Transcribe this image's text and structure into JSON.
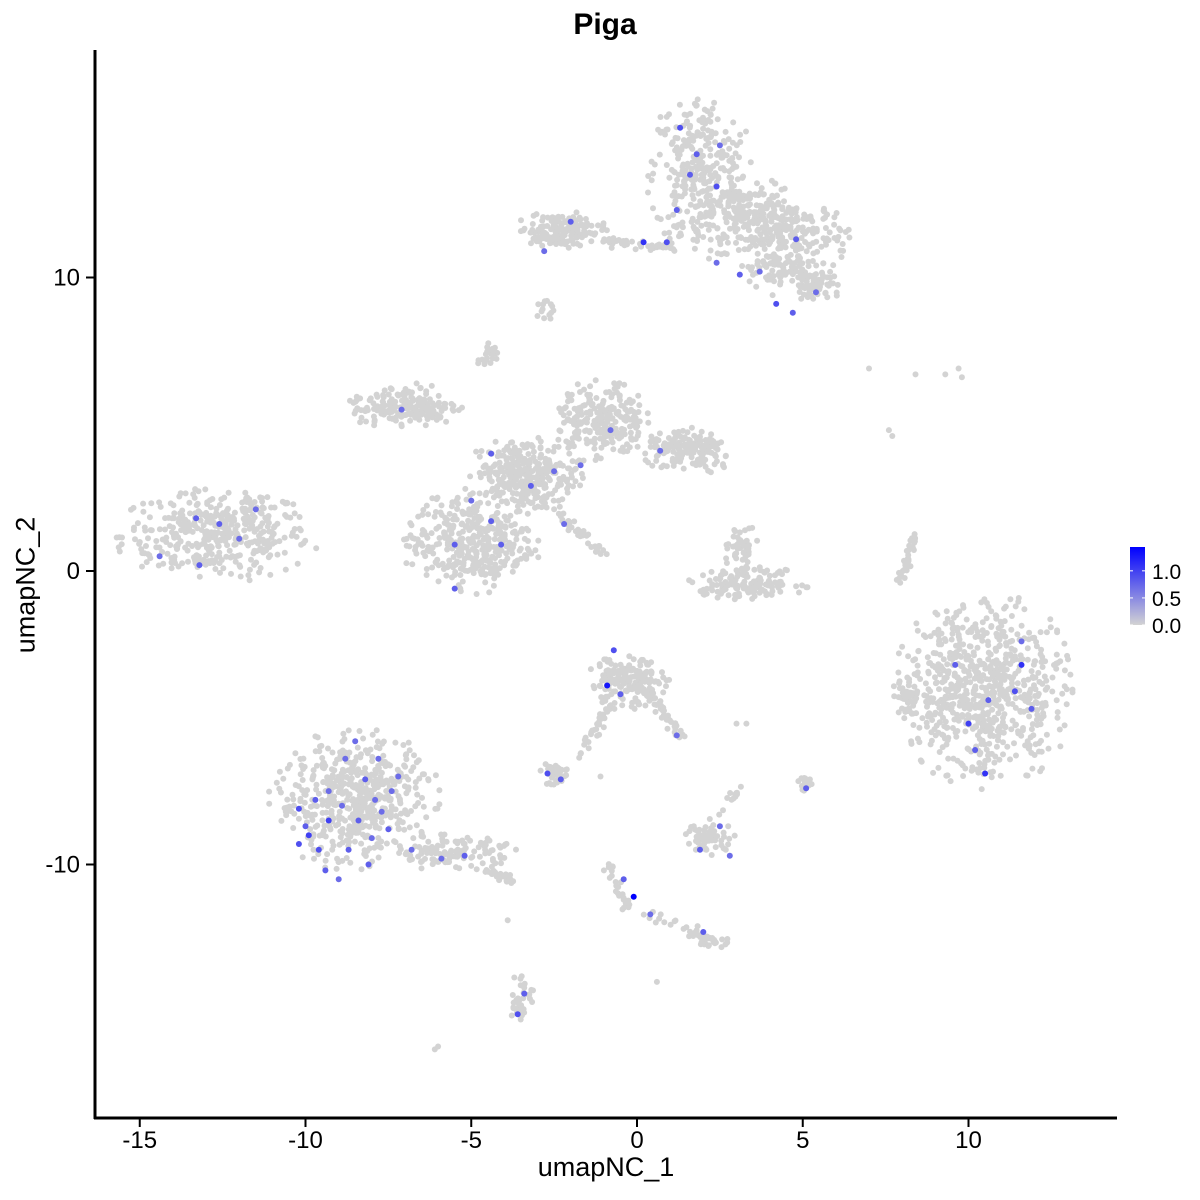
{
  "chart_data": {
    "type": "scatter",
    "title": "Piga",
    "xlabel": "umapNC_1",
    "ylabel": "umapNC_2",
    "xlim": [
      -16.5,
      14.4
    ],
    "ylim": [
      -18.8,
      17.9
    ],
    "xticks": [
      -15,
      -10,
      -5,
      0,
      5,
      10
    ],
    "xtick_labels": [
      "-15",
      "-10",
      "-5",
      "0",
      "5",
      "10"
    ],
    "yticks": [
      -10,
      0,
      10
    ],
    "ytick_labels": [
      "-10",
      "0",
      "10"
    ],
    "grid": false,
    "legend": {
      "placement": "right",
      "type": "colorbar",
      "min": 0.0,
      "max": 1.44,
      "ticks": [
        0.0,
        0.5,
        1.0
      ],
      "tick_labels": [
        "0.0",
        "0.5",
        "1.0"
      ],
      "low_color": "#d3d3d3",
      "high_color": "#0000ff"
    },
    "zero_expression_clusters": [
      {
        "cx": -12.7,
        "cy": 1.2,
        "sx": 1.9,
        "sy": 1.0,
        "n": 420
      },
      {
        "cx": -11.6,
        "cy": 2.2,
        "sx": 0.4,
        "sy": 0.3,
        "n": 25
      },
      {
        "cx": 1.9,
        "cy": 13.4,
        "sx": 1.0,
        "sy": 1.9,
        "n": 380
      },
      {
        "cx": 3.5,
        "cy": 12.2,
        "sx": 0.9,
        "sy": 0.8,
        "n": 150
      },
      {
        "cx": 4.6,
        "cy": 11.4,
        "sx": 1.2,
        "sy": 0.8,
        "n": 230
      },
      {
        "cx": 5.4,
        "cy": 9.7,
        "sx": 0.5,
        "sy": 0.4,
        "n": 70
      },
      {
        "cx": 4.3,
        "cy": 10.2,
        "sx": 0.8,
        "sy": 0.5,
        "n": 80
      },
      {
        "cx": -2.3,
        "cy": 11.6,
        "sx": 0.9,
        "sy": 0.4,
        "n": 170
      },
      {
        "cx": -2.8,
        "cy": 8.8,
        "sx": 0.2,
        "sy": 0.3,
        "n": 15
      },
      {
        "cx": -4.5,
        "cy": 7.3,
        "sx": 0.2,
        "sy": 0.3,
        "n": 25
      },
      {
        "cx": -7.0,
        "cy": 5.6,
        "sx": 1.1,
        "sy": 0.5,
        "n": 200
      },
      {
        "cx": -3.4,
        "cy": 3.3,
        "sx": 1.1,
        "sy": 0.8,
        "n": 320
      },
      {
        "cx": -5.0,
        "cy": 1.0,
        "sx": 1.3,
        "sy": 1.1,
        "n": 420
      },
      {
        "cx": -1.1,
        "cy": 5.1,
        "sx": 0.9,
        "sy": 0.9,
        "n": 260
      },
      {
        "cx": 1.6,
        "cy": 4.1,
        "sx": 0.9,
        "sy": 0.5,
        "n": 180
      },
      {
        "cx": 3.3,
        "cy": -0.4,
        "sx": 1.2,
        "sy": 0.35,
        "n": 170
      },
      {
        "cx": 3.1,
        "cy": 0.8,
        "sx": 0.4,
        "sy": 0.5,
        "n": 50
      },
      {
        "cx": 10.5,
        "cy": -4.1,
        "sx": 1.7,
        "sy": 2.1,
        "n": 800
      },
      {
        "cx": 8.1,
        "cy": -4.2,
        "sx": 0.25,
        "sy": 0.5,
        "n": 40
      },
      {
        "cx": -8.5,
        "cy": -7.8,
        "sx": 1.6,
        "sy": 1.5,
        "n": 600
      },
      {
        "cx": -5.5,
        "cy": -9.6,
        "sx": 1.2,
        "sy": 0.4,
        "n": 130
      },
      {
        "cx": -0.3,
        "cy": -3.8,
        "sx": 0.8,
        "sy": 0.6,
        "n": 200
      },
      {
        "cx": -2.4,
        "cy": -6.9,
        "sx": 0.4,
        "sy": 0.25,
        "n": 40
      },
      {
        "cx": 2.2,
        "cy": -9.1,
        "sx": 0.5,
        "sy": 0.35,
        "n": 60
      },
      {
        "cx": 5.1,
        "cy": -7.2,
        "sx": 0.15,
        "sy": 0.2,
        "n": 15
      },
      {
        "cx": -3.5,
        "cy": -14.6,
        "sx": 0.25,
        "sy": 0.6,
        "n": 40
      },
      {
        "cx": 2.4,
        "cy": -12.6,
        "sx": 0.35,
        "sy": 0.15,
        "n": 25
      }
    ],
    "zero_expression_segments": [
      {
        "from": [
          -1.2,
          11.3
        ],
        "to": [
          1.2,
          11.0
        ],
        "n": 40
      },
      {
        "from": [
          -3.2,
          2.8
        ],
        "to": [
          -1.0,
          0.6
        ],
        "n": 50
      },
      {
        "from": [
          7.9,
          -0.4
        ],
        "to": [
          8.4,
          1.2
        ],
        "n": 35
      },
      {
        "from": [
          -4.5,
          -10.2
        ],
        "to": [
          -3.7,
          -10.6
        ],
        "n": 30
      },
      {
        "from": [
          0.4,
          -4.2
        ],
        "to": [
          1.3,
          -5.6
        ],
        "n": 40
      },
      {
        "from": [
          -1.8,
          -6.3
        ],
        "to": [
          -0.6,
          -4.3
        ],
        "n": 30
      },
      {
        "from": [
          -0.8,
          -10.0
        ],
        "to": [
          -0.2,
          -11.8
        ],
        "n": 25
      },
      {
        "from": [
          0.2,
          -11.7
        ],
        "to": [
          2.2,
          -12.5
        ],
        "n": 25
      },
      {
        "from": [
          1.8,
          -9.0
        ],
        "to": [
          3.3,
          -7.2
        ],
        "n": 15
      }
    ],
    "zero_expression_points": [
      [
        7.0,
        6.9
      ],
      [
        8.4,
        6.7
      ],
      [
        9.3,
        6.7
      ],
      [
        9.7,
        6.9
      ],
      [
        9.8,
        6.6
      ],
      [
        7.6,
        4.8
      ],
      [
        7.7,
        4.6
      ],
      [
        -6.1,
        -16.3
      ],
      [
        -6.0,
        -16.2
      ],
      [
        0.6,
        -14.0
      ],
      [
        -3.9,
        -11.9
      ],
      [
        -1.1,
        -7.0
      ],
      [
        3.3,
        -5.2
      ],
      [
        3.0,
        -5.2
      ],
      [
        -1.0,
        -10.2
      ]
    ],
    "expressing_points": [
      {
        "x": -10.0,
        "y": -8.7,
        "v": 0.8
      },
      {
        "x": -9.6,
        "y": -9.5,
        "v": 0.9
      },
      {
        "x": -9.3,
        "y": -7.5,
        "v": 0.7
      },
      {
        "x": -8.8,
        "y": -6.4,
        "v": 0.7
      },
      {
        "x": -8.4,
        "y": -8.5,
        "v": 0.8
      },
      {
        "x": -7.9,
        "y": -7.8,
        "v": 0.7
      },
      {
        "x": -7.5,
        "y": -8.8,
        "v": 0.8
      },
      {
        "x": -10.2,
        "y": -9.3,
        "v": 0.9
      },
      {
        "x": -9.0,
        "y": -10.5,
        "v": 0.7
      },
      {
        "x": -8.1,
        "y": -10.0,
        "v": 0.8
      },
      {
        "x": -8.5,
        "y": -5.8,
        "v": 0.7
      },
      {
        "x": -7.4,
        "y": -7.5,
        "v": 0.7
      },
      {
        "x": -6.8,
        "y": -9.5,
        "v": 0.7
      },
      {
        "x": -9.3,
        "y": -8.5,
        "v": 1.0
      },
      {
        "x": -8.2,
        "y": -7.1,
        "v": 0.8
      },
      {
        "x": -7.8,
        "y": -6.4,
        "v": 0.7
      },
      {
        "x": -9.7,
        "y": -7.8,
        "v": 0.8
      },
      {
        "x": -8.7,
        "y": -9.5,
        "v": 0.8
      },
      {
        "x": -5.9,
        "y": -9.8,
        "v": 0.7
      },
      {
        "x": -5.2,
        "y": -9.7,
        "v": 0.8
      },
      {
        "x": -7.7,
        "y": -8.2,
        "v": 0.7
      },
      {
        "x": -9.4,
        "y": -10.2,
        "v": 0.8
      },
      {
        "x": -10.2,
        "y": -8.1,
        "v": 0.9
      },
      {
        "x": -8.9,
        "y": -8.0,
        "v": 0.7
      },
      {
        "x": -7.2,
        "y": -7.0,
        "v": 0.7
      },
      {
        "x": -9.9,
        "y": -9.0,
        "v": 1.0
      },
      {
        "x": -8.0,
        "y": -9.1,
        "v": 0.7
      },
      {
        "x": -13.3,
        "y": 1.8,
        "v": 0.8
      },
      {
        "x": -12.0,
        "y": 1.1,
        "v": 0.7
      },
      {
        "x": -12.6,
        "y": 1.6,
        "v": 0.8
      },
      {
        "x": -14.4,
        "y": 0.5,
        "v": 0.7
      },
      {
        "x": -11.5,
        "y": 2.1,
        "v": 0.7
      },
      {
        "x": -13.2,
        "y": 0.2,
        "v": 0.8
      },
      {
        "x": -4.4,
        "y": 4.0,
        "v": 0.8
      },
      {
        "x": -4.4,
        "y": 1.7,
        "v": 0.8
      },
      {
        "x": -5.0,
        "y": 2.4,
        "v": 0.7
      },
      {
        "x": -5.5,
        "y": 0.9,
        "v": 0.8
      },
      {
        "x": -3.2,
        "y": 2.9,
        "v": 0.8
      },
      {
        "x": -2.5,
        "y": 3.4,
        "v": 0.7
      },
      {
        "x": -1.7,
        "y": 3.6,
        "v": 0.7
      },
      {
        "x": -7.1,
        "y": 5.5,
        "v": 0.7
      },
      {
        "x": -0.8,
        "y": 4.8,
        "v": 0.7
      },
      {
        "x": 0.7,
        "y": 4.1,
        "v": 0.7
      },
      {
        "x": -5.5,
        "y": -0.6,
        "v": 0.8
      },
      {
        "x": -2.2,
        "y": 1.6,
        "v": 0.7
      },
      {
        "x": -4.1,
        "y": 0.9,
        "v": 0.8
      },
      {
        "x": 1.3,
        "y": 15.1,
        "v": 0.9
      },
      {
        "x": 1.8,
        "y": 14.2,
        "v": 0.8
      },
      {
        "x": 2.4,
        "y": 13.1,
        "v": 0.9
      },
      {
        "x": 1.6,
        "y": 13.5,
        "v": 0.8
      },
      {
        "x": 2.5,
        "y": 14.5,
        "v": 0.7
      },
      {
        "x": -2.0,
        "y": 11.9,
        "v": 0.8
      },
      {
        "x": -2.8,
        "y": 10.9,
        "v": 0.7
      },
      {
        "x": 0.2,
        "y": 11.2,
        "v": 1.1
      },
      {
        "x": 0.9,
        "y": 11.2,
        "v": 0.9
      },
      {
        "x": 3.1,
        "y": 10.1,
        "v": 0.8
      },
      {
        "x": 3.7,
        "y": 10.2,
        "v": 0.7
      },
      {
        "x": 4.2,
        "y": 9.1,
        "v": 0.9
      },
      {
        "x": 4.8,
        "y": 11.3,
        "v": 0.8
      },
      {
        "x": 5.4,
        "y": 9.5,
        "v": 0.7
      },
      {
        "x": 4.7,
        "y": 8.8,
        "v": 0.8
      },
      {
        "x": 1.2,
        "y": 12.3,
        "v": 0.8
      },
      {
        "x": 2.4,
        "y": 10.5,
        "v": 0.7
      },
      {
        "x": -0.9,
        "y": -3.9,
        "v": 1.3
      },
      {
        "x": -0.5,
        "y": -4.2,
        "v": 0.8
      },
      {
        "x": -0.7,
        "y": -2.7,
        "v": 0.9
      },
      {
        "x": 1.2,
        "y": -5.6,
        "v": 0.7
      },
      {
        "x": -2.7,
        "y": -6.9,
        "v": 0.9
      },
      {
        "x": -2.3,
        "y": -7.1,
        "v": 0.8
      },
      {
        "x": -0.1,
        "y": -11.1,
        "v": 1.44
      },
      {
        "x": -0.4,
        "y": -10.5,
        "v": 0.8
      },
      {
        "x": 0.4,
        "y": -11.7,
        "v": 0.7
      },
      {
        "x": 2.0,
        "y": -12.3,
        "v": 0.8
      },
      {
        "x": 1.9,
        "y": -9.5,
        "v": 0.8
      },
      {
        "x": 2.5,
        "y": -8.7,
        "v": 0.7
      },
      {
        "x": 2.8,
        "y": -9.7,
        "v": 0.7
      },
      {
        "x": 5.1,
        "y": -7.4,
        "v": 0.8
      },
      {
        "x": -3.6,
        "y": -15.1,
        "v": 0.9
      },
      {
        "x": -3.4,
        "y": -14.4,
        "v": 0.8
      },
      {
        "x": 11.6,
        "y": -3.2,
        "v": 1.1
      },
      {
        "x": 11.4,
        "y": -4.1,
        "v": 0.9
      },
      {
        "x": 10.6,
        "y": -4.4,
        "v": 0.8
      },
      {
        "x": 10.0,
        "y": -5.2,
        "v": 1.0
      },
      {
        "x": 10.2,
        "y": -6.1,
        "v": 0.8
      },
      {
        "x": 10.5,
        "y": -6.9,
        "v": 1.1
      },
      {
        "x": 9.6,
        "y": -3.2,
        "v": 0.8
      },
      {
        "x": 11.9,
        "y": -4.7,
        "v": 0.8
      },
      {
        "x": 11.6,
        "y": -2.4,
        "v": 0.7
      }
    ]
  }
}
